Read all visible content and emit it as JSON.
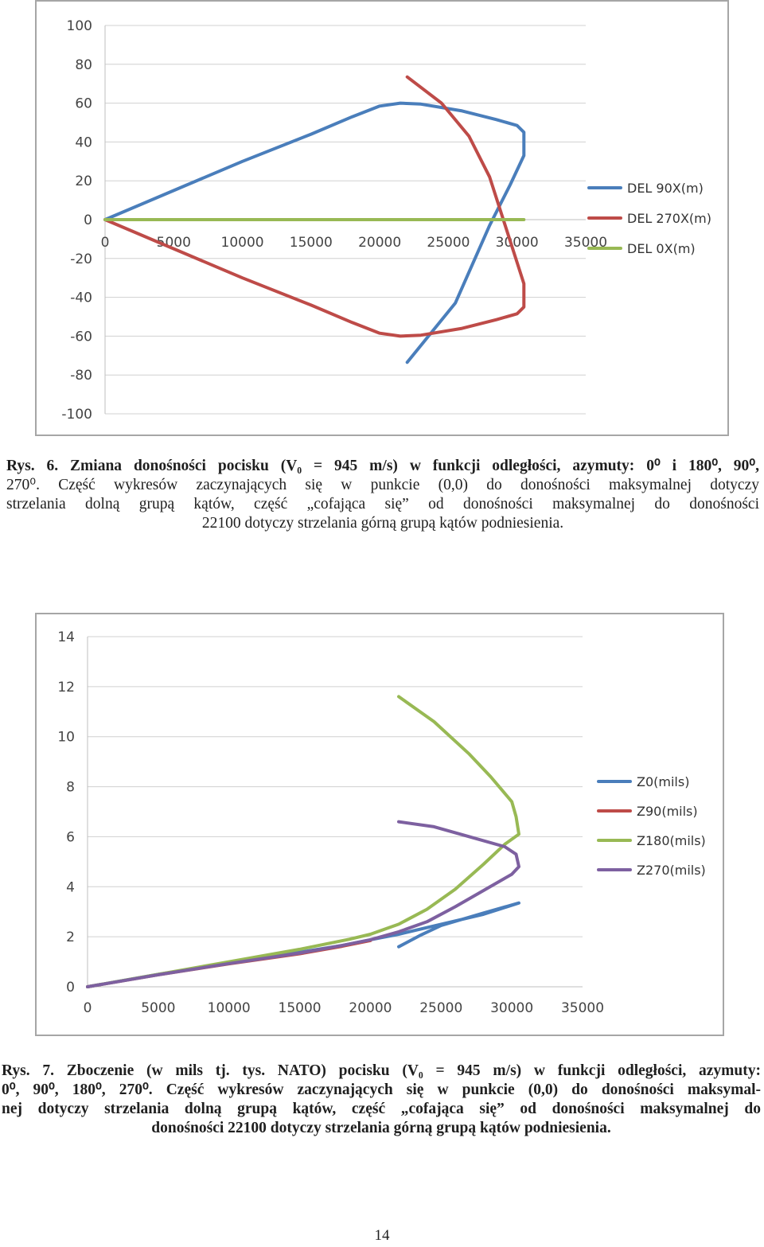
{
  "figures": [
    {
      "caption_lines": [
        "Rys. 6. Zmiana donośności pocisku  (V₀ = 945 m/s) w funkcji odległości, azymuty: 0⁰ i 180⁰, 90⁰,",
        "270⁰. Część wykresów zaczynających się w punkcie (0,0) do donośności maksymalnej dotyczy",
        "strzelania dolną grupą kątów, część „cofająca się” od donośności maksymalnej do donośności",
        "22100 dotyczy strzelania górną grupą kątów podniesienia."
      ]
    },
    {
      "caption_lines": [
        "Rys. 7. Zboczenie (w mils tj. tys. NATO) pocisku  (V₀ = 945 m/s) w funkcji odległości, azymuty:",
        "0⁰, 90⁰, 180⁰, 270⁰. Część wykresów zaczynających się w punkcie (0,0) do donośności maksymal-",
        "nej  dotyczy strzelania dolną grupą kątów, część „cofająca się” od donośności maksymalnej do",
        "donośności 22100 dotyczy strzelania górną grupą kątów podniesienia."
      ]
    }
  ],
  "page_number": "14",
  "chart_data": [
    {
      "type": "scatter",
      "title": "",
      "xlabel": "",
      "ylabel": "",
      "xlim": [
        0,
        35000
      ],
      "ylim": [
        -100,
        100
      ],
      "x_ticks": [
        "0",
        "5000",
        "10000",
        "15000",
        "20000",
        "25000",
        "30000",
        "35000"
      ],
      "y_ticks": [
        "100",
        "80",
        "60",
        "40",
        "20",
        "0",
        "-20",
        "-40",
        "-60",
        "-80",
        "-100"
      ],
      "grid": "horizontal",
      "legend_position": "right",
      "series": [
        {
          "name": "DEL 90X(m)",
          "color": "#4a7ebb",
          "points": [
            [
              0,
              0
            ],
            [
              5000,
              15
            ],
            [
              10000,
              30
            ],
            [
              15000,
              44
            ],
            [
              18000,
              53
            ],
            [
              20000,
              58.5
            ],
            [
              21500,
              60
            ],
            [
              23000,
              59.5
            ],
            [
              26000,
              56
            ],
            [
              28500,
              51.5
            ],
            [
              30000,
              48.5
            ],
            [
              30500,
              45
            ],
            [
              30500,
              33
            ],
            [
              29500,
              18
            ],
            [
              28000,
              -3
            ],
            [
              25500,
              -43
            ],
            [
              22000,
              -73.5
            ]
          ]
        },
        {
          "name": "DEL 270X(m)",
          "color": "#be4b48",
          "points": [
            [
              22000,
              73.5
            ],
            [
              24500,
              60
            ],
            [
              26500,
              43
            ],
            [
              28000,
              22
            ],
            [
              30000,
              -22
            ],
            [
              30500,
              -33
            ],
            [
              30500,
              -45
            ],
            [
              30000,
              -48.5
            ],
            [
              28500,
              -51.5
            ],
            [
              26000,
              -56
            ],
            [
              23000,
              -59.5
            ],
            [
              21500,
              -60
            ],
            [
              20000,
              -58.5
            ],
            [
              18000,
              -53
            ],
            [
              15000,
              -44
            ],
            [
              10000,
              -30
            ],
            [
              5000,
              -15
            ],
            [
              0,
              0
            ]
          ]
        },
        {
          "name": "DEL 0X(m)",
          "color": "#98b954",
          "points": [
            [
              0,
              0
            ],
            [
              30500,
              0
            ]
          ]
        }
      ]
    },
    {
      "type": "scatter",
      "title": "",
      "xlabel": "",
      "ylabel": "",
      "xlim": [
        0,
        35000
      ],
      "ylim": [
        0,
        14
      ],
      "x_ticks": [
        "0",
        "5000",
        "10000",
        "15000",
        "20000",
        "25000",
        "30000",
        "35000"
      ],
      "y_ticks": [
        "14",
        "12",
        "10",
        "8",
        "6",
        "4",
        "2",
        "0"
      ],
      "grid": "horizontal",
      "legend_position": "right",
      "series": [
        {
          "name": "Z0(mils)",
          "color": "#4a7ebb",
          "points": [
            [
              0,
              0
            ],
            [
              5000,
              0.5
            ],
            [
              10000,
              0.95
            ],
            [
              15000,
              1.38
            ],
            [
              18000,
              1.65
            ],
            [
              20000,
              1.88
            ],
            [
              22000,
              2.1
            ],
            [
              25000,
              2.5
            ],
            [
              28000,
              2.9
            ],
            [
              30500,
              3.35
            ],
            [
              28000,
              2.95
            ],
            [
              25000,
              2.45
            ],
            [
              23500,
              2.05
            ],
            [
              22000,
              1.6
            ]
          ]
        },
        {
          "name": "Z90(mils)",
          "color": "#be4b48",
          "points": [
            [
              0,
              0
            ],
            [
              5000,
              0.48
            ],
            [
              10000,
              0.92
            ],
            [
              15000,
              1.32
            ],
            [
              18000,
              1.62
            ],
            [
              20000,
              1.85
            ]
          ]
        },
        {
          "name": "Z180(mils)",
          "color": "#98b954",
          "points": [
            [
              0,
              0
            ],
            [
              5000,
              0.5
            ],
            [
              10000,
              1.0
            ],
            [
              15000,
              1.5
            ],
            [
              18500,
              1.9
            ],
            [
              20000,
              2.1
            ],
            [
              22000,
              2.5
            ],
            [
              24000,
              3.1
            ],
            [
              26000,
              3.9
            ],
            [
              28000,
              4.9
            ],
            [
              29500,
              5.7
            ],
            [
              30500,
              6.1
            ],
            [
              30300,
              6.8
            ],
            [
              30000,
              7.4
            ],
            [
              28500,
              8.4
            ],
            [
              27000,
              9.3
            ],
            [
              24500,
              10.6
            ],
            [
              22000,
              11.6
            ]
          ]
        },
        {
          "name": "Z270(mils)",
          "color": "#7d60a0",
          "points": [
            [
              0,
              0
            ],
            [
              5000,
              0.48
            ],
            [
              10000,
              0.93
            ],
            [
              15000,
              1.35
            ],
            [
              18000,
              1.65
            ],
            [
              20000,
              1.88
            ],
            [
              22000,
              2.2
            ],
            [
              24000,
              2.6
            ],
            [
              26000,
              3.2
            ],
            [
              28000,
              3.85
            ],
            [
              30000,
              4.5
            ],
            [
              30500,
              4.8
            ],
            [
              30300,
              5.3
            ],
            [
              29500,
              5.6
            ],
            [
              27000,
              6.0
            ],
            [
              24500,
              6.4
            ],
            [
              22000,
              6.6
            ]
          ]
        }
      ]
    }
  ]
}
